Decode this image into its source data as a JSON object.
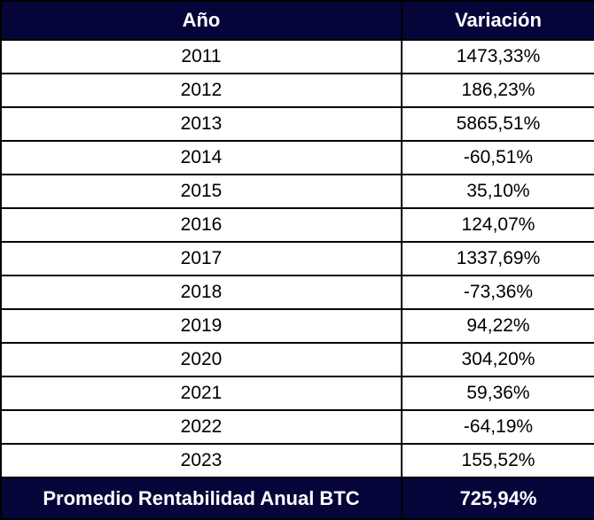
{
  "table": {
    "header": [
      "Año",
      "Variación"
    ],
    "rows": [
      [
        "2011",
        "1473,33%"
      ],
      [
        "2012",
        "186,23%"
      ],
      [
        "2013",
        "5865,51%"
      ],
      [
        "2014",
        "-60,51%"
      ],
      [
        "2015",
        "35,10%"
      ],
      [
        "2016",
        "124,07%"
      ],
      [
        "2017",
        "1337,69%"
      ],
      [
        "2018",
        "-73,36%"
      ],
      [
        "2019",
        "94,22%"
      ],
      [
        "2020",
        "304,20%"
      ],
      [
        "2021",
        "59,36%"
      ],
      [
        "2022",
        "-64,19%"
      ],
      [
        "2023",
        "155,52%"
      ]
    ],
    "footer": [
      "Promedio Rentabilidad Anual BTC",
      "725,94%"
    ]
  }
}
